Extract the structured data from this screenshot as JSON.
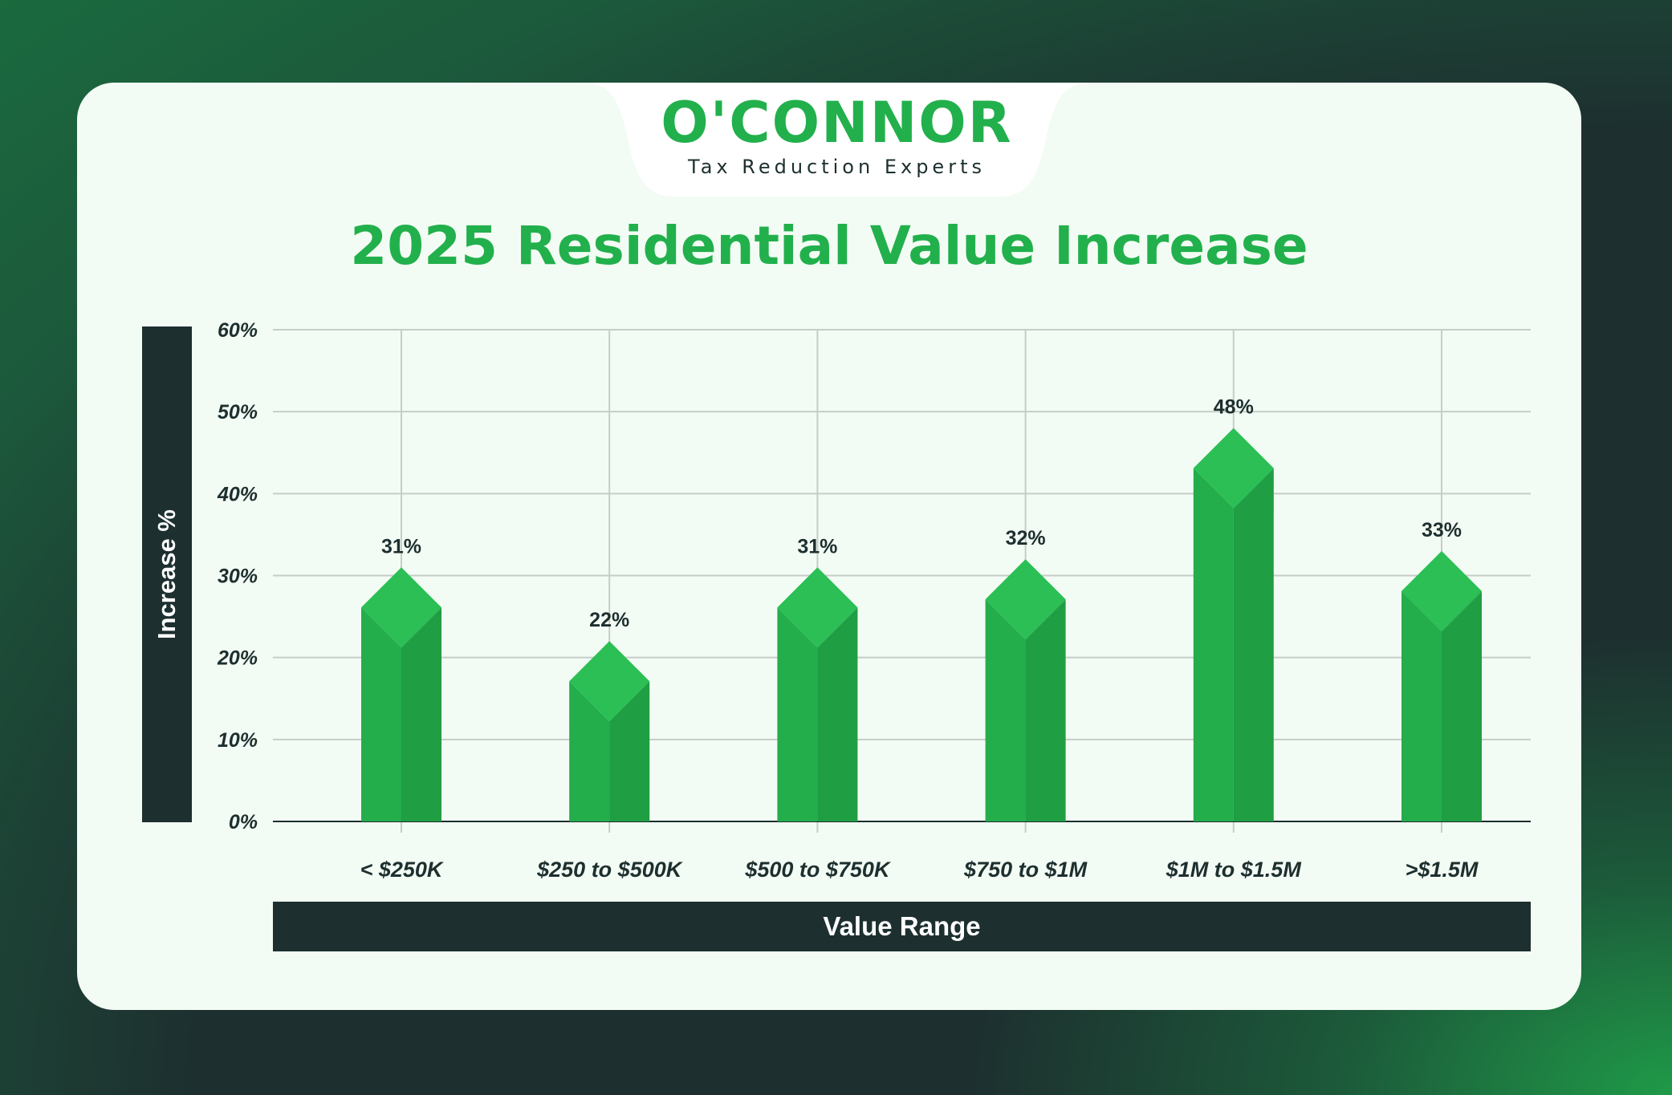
{
  "brand": {
    "name": "O'CONNOR",
    "tagline": "Tax Reduction Experts"
  },
  "colors": {
    "accent": "#22b04c",
    "dark": "#1d2f2f",
    "card": "#f3fcf4",
    "bar_light": "#23ad4b",
    "bar_dark": "#1f9e43",
    "bar_top": "#2bbf55"
  },
  "chart_data": {
    "type": "bar",
    "title": "2025 Residential Value Increase",
    "xlabel": "Value Range",
    "ylabel": "Increase %",
    "categories": [
      "< $250K",
      "$250 to $500K",
      "$500 to $750K",
      "$750 to $1M",
      "$1M to $1.5M",
      ">$1.5M"
    ],
    "values": [
      31,
      22,
      31,
      32,
      48,
      33
    ],
    "data_labels": [
      "31%",
      "22%",
      "31%",
      "32%",
      "48%",
      "33%"
    ],
    "yticks": [
      "0%",
      "10%",
      "20%",
      "30%",
      "40%",
      "50%",
      "60%"
    ],
    "ylim": [
      0,
      60
    ],
    "grid": true
  }
}
